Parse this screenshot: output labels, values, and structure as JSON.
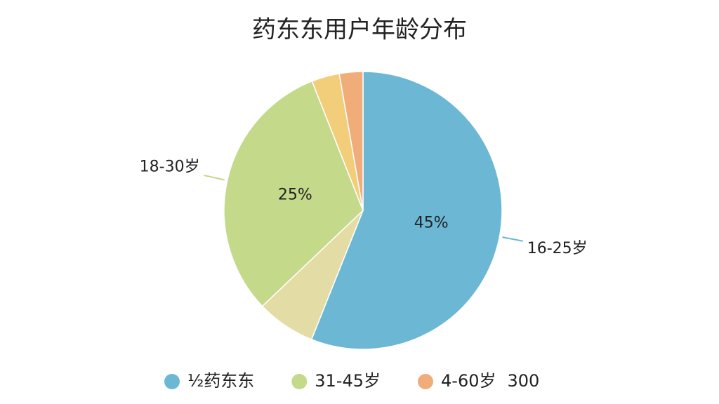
{
  "chart_data": {
    "type": "pie",
    "title": "药东东用户年龄分布",
    "categories": [
      "16-25岁",
      null,
      "18-30岁",
      null,
      null
    ],
    "values": [
      45,
      5.5,
      25,
      2.6,
      2.2
    ],
    "value_labels": [
      "45%",
      null,
      "25%",
      null,
      null
    ],
    "colors": [
      "#6cb8d4",
      "#e3dca4",
      "#c5d98a",
      "#f2cd7a",
      "#f0ad7a"
    ],
    "legend": [
      {
        "name": "½药东东",
        "color": "#6cb8d4"
      },
      {
        "name": "31-45岁",
        "color": "#c5d98a"
      },
      {
        "name": "4-60岁",
        "color": "#f0ad7a"
      }
    ],
    "legend_note": "300"
  }
}
